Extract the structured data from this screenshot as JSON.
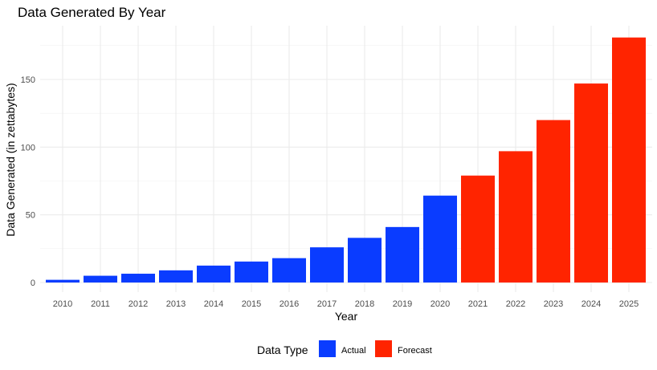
{
  "chart_data": {
    "type": "bar",
    "title": "Data Generated By Year",
    "xlabel": "Year",
    "ylabel": "Data Generated (in zettabytes)",
    "categories": [
      "2010",
      "2011",
      "2012",
      "2013",
      "2014",
      "2015",
      "2016",
      "2017",
      "2018",
      "2019",
      "2020",
      "2021",
      "2022",
      "2023",
      "2024",
      "2025"
    ],
    "values": [
      2,
      5,
      6.5,
      9,
      12.5,
      15.5,
      18,
      26,
      33,
      41,
      64.2,
      79,
      97,
      120,
      147,
      181
    ],
    "data_type": [
      "Actual",
      "Actual",
      "Actual",
      "Actual",
      "Actual",
      "Actual",
      "Actual",
      "Actual",
      "Actual",
      "Actual",
      "Actual",
      "Forecast",
      "Forecast",
      "Forecast",
      "Forecast",
      "Forecast"
    ],
    "yticks": [
      0,
      50,
      100,
      150
    ],
    "ylim": [
      0,
      181
    ],
    "grid": true,
    "legend": {
      "title": "Data Type",
      "placement": "bottom",
      "entries": [
        {
          "label": "Actual",
          "color": "#0a3cff"
        },
        {
          "label": "Forecast",
          "color": "#ff2400"
        }
      ]
    }
  }
}
